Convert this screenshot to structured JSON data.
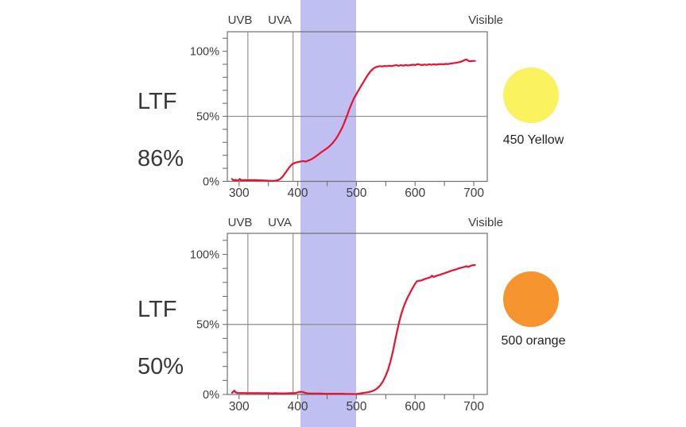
{
  "palette": {
    "background": "#ffffff",
    "curve_red": "#e8112f",
    "grid_gray": "#8b8b8b",
    "border_gray": "#707070",
    "tick_gray": "#707070",
    "text_dark": "#3c3c3c",
    "band_color": "rgba(102,102,224,0.42)"
  },
  "band": {
    "from_nm": 405,
    "to_nm": 500
  },
  "chart_data": [
    {
      "type": "line",
      "side_label": {
        "line1": "LTF",
        "line2": "86%"
      },
      "swatch": {
        "label": "450 Yellow",
        "color": "#FAF25E"
      },
      "xlim": [
        280,
        723
      ],
      "ylim": [
        0,
        115
      ],
      "x_ticks": [
        300,
        400,
        500,
        600,
        700
      ],
      "x_minor_ticks": [
        350,
        450,
        550,
        650
      ],
      "y_ticks": [
        {
          "value": 0,
          "label": "0%"
        },
        {
          "value": 50,
          "label": "50%"
        },
        {
          "value": 100,
          "label": "100%"
        }
      ],
      "y_minor": {
        "step": 10,
        "max": 110
      },
      "h_gridlines": [
        50
      ],
      "uv_lines_nm": [
        315,
        392
      ],
      "region_labels": [
        "UVB",
        "UVA",
        "Visible"
      ],
      "series": [
        {
          "name": "spectral-transmission-450-yellow",
          "points": [
            [
              288,
              1.8
            ],
            [
              290,
              1.0
            ],
            [
              292,
              0.7
            ],
            [
              294,
              1.2
            ],
            [
              296,
              0.7
            ],
            [
              299,
              0.8
            ],
            [
              301,
              1.9
            ],
            [
              303,
              0.8
            ],
            [
              306,
              0.9
            ],
            [
              310,
              1.0
            ],
            [
              314,
              0.9
            ],
            [
              318,
              1.0
            ],
            [
              322,
              0.9
            ],
            [
              326,
              1.0
            ],
            [
              330,
              0.9
            ],
            [
              334,
              0.8
            ],
            [
              338,
              0.8
            ],
            [
              342,
              0.7
            ],
            [
              346,
              0.6
            ],
            [
              350,
              0.5
            ],
            [
              354,
              0.4
            ],
            [
              358,
              0.4
            ],
            [
              362,
              0.5
            ],
            [
              366,
              0.9
            ],
            [
              370,
              1.8
            ],
            [
              374,
              3.5
            ],
            [
              378,
              6.0
            ],
            [
              382,
              8.5
            ],
            [
              386,
              11.0
            ],
            [
              390,
              13.0
            ],
            [
              394,
              14.0
            ],
            [
              398,
              14.6
            ],
            [
              402,
              15.0
            ],
            [
              406,
              15.4
            ],
            [
              410,
              15.6
            ],
            [
              413,
              15.1
            ],
            [
              416,
              15.6
            ],
            [
              420,
              16.3
            ],
            [
              424,
              17.2
            ],
            [
              428,
              18.3
            ],
            [
              432,
              19.6
            ],
            [
              436,
              21.0
            ],
            [
              440,
              22.4
            ],
            [
              444,
              23.6
            ],
            [
              448,
              24.8
            ],
            [
              452,
              26.2
            ],
            [
              456,
              27.8
            ],
            [
              460,
              29.8
            ],
            [
              464,
              32.0
            ],
            [
              468,
              34.8
            ],
            [
              472,
              38.0
            ],
            [
              476,
              41.5
            ],
            [
              480,
              45.8
            ],
            [
              484,
              50.5
            ],
            [
              488,
              55.5
            ],
            [
              492,
              60.0
            ],
            [
              496,
              64.0
            ],
            [
              500,
              67.2
            ],
            [
              504,
              70.3
            ],
            [
              508,
              73.4
            ],
            [
              512,
              76.4
            ],
            [
              516,
              79.4
            ],
            [
              520,
              82.2
            ],
            [
              524,
              84.6
            ],
            [
              528,
              86.4
            ],
            [
              532,
              87.6
            ],
            [
              536,
              88.2
            ],
            [
              540,
              88.6
            ],
            [
              544,
              88.3
            ],
            [
              548,
              88.7
            ],
            [
              552,
              88.5
            ],
            [
              556,
              88.9
            ],
            [
              560,
              88.6
            ],
            [
              564,
              89.0
            ],
            [
              568,
              89.3
            ],
            [
              572,
              88.8
            ],
            [
              576,
              89.4
            ],
            [
              580,
              88.9
            ],
            [
              584,
              89.5
            ],
            [
              588,
              89.0
            ],
            [
              592,
              89.4
            ],
            [
              596,
              89.7
            ],
            [
              600,
              89.3
            ],
            [
              604,
              90.2
            ],
            [
              608,
              89.7
            ],
            [
              612,
              89.4
            ],
            [
              616,
              89.8
            ],
            [
              620,
              89.5
            ],
            [
              624,
              89.9
            ],
            [
              628,
              89.6
            ],
            [
              632,
              90.0
            ],
            [
              636,
              89.7
            ],
            [
              640,
              90.0
            ],
            [
              644,
              90.2
            ],
            [
              648,
              90.0
            ],
            [
              652,
              90.3
            ],
            [
              656,
              90.2
            ],
            [
              660,
              90.5
            ],
            [
              664,
              90.8
            ],
            [
              668,
              91.0
            ],
            [
              672,
              91.3
            ],
            [
              676,
              91.7
            ],
            [
              680,
              92.3
            ],
            [
              684,
              93.1
            ],
            [
              687,
              93.7
            ],
            [
              690,
              93.0
            ],
            [
              693,
              92.3
            ],
            [
              696,
              92.4
            ],
            [
              699,
              92.6
            ],
            [
              702,
              92.6
            ]
          ]
        }
      ]
    },
    {
      "type": "line",
      "side_label": {
        "line1": "LTF",
        "line2": "50%"
      },
      "swatch": {
        "label": "500 orange",
        "color": "#F6942D"
      },
      "xlim": [
        280,
        723
      ],
      "ylim": [
        0,
        115
      ],
      "x_ticks": [
        300,
        400,
        500,
        600,
        700
      ],
      "x_minor_ticks": [
        350,
        450,
        550,
        650
      ],
      "y_ticks": [
        {
          "value": 0,
          "label": "0%"
        },
        {
          "value": 50,
          "label": "50%"
        },
        {
          "value": 100,
          "label": "100%"
        }
      ],
      "y_minor": {
        "step": 10,
        "max": 110
      },
      "h_gridlines": [
        50
      ],
      "uv_lines_nm": [
        315,
        392
      ],
      "region_labels": [
        "UVB",
        "UVA",
        "Visible"
      ],
      "series": [
        {
          "name": "spectral-transmission-500-orange",
          "points": [
            [
              288,
              1.2
            ],
            [
              290,
              2.0
            ],
            [
              292,
              2.7
            ],
            [
              294,
              1.6
            ],
            [
              297,
              1.1
            ],
            [
              300,
              1.0
            ],
            [
              305,
              1.0
            ],
            [
              310,
              1.0
            ],
            [
              315,
              0.9
            ],
            [
              320,
              1.0
            ],
            [
              326,
              0.9
            ],
            [
              332,
              1.0
            ],
            [
              338,
              0.9
            ],
            [
              344,
              0.9
            ],
            [
              350,
              0.9
            ],
            [
              356,
              0.8
            ],
            [
              362,
              0.9
            ],
            [
              368,
              0.8
            ],
            [
              374,
              0.8
            ],
            [
              380,
              0.8
            ],
            [
              386,
              0.9
            ],
            [
              392,
              0.9
            ],
            [
              397,
              1.1
            ],
            [
              401,
              1.6
            ],
            [
              405,
              1.9
            ],
            [
              409,
              1.7
            ],
            [
              413,
              1.1
            ],
            [
              417,
              0.8
            ],
            [
              422,
              0.7
            ],
            [
              428,
              0.6
            ],
            [
              434,
              0.6
            ],
            [
              440,
              0.6
            ],
            [
              446,
              0.5
            ],
            [
              452,
              0.5
            ],
            [
              458,
              0.5
            ],
            [
              464,
              0.5
            ],
            [
              470,
              0.5
            ],
            [
              476,
              0.5
            ],
            [
              482,
              0.4
            ],
            [
              488,
              0.4
            ],
            [
              494,
              0.3
            ],
            [
              500,
              0.4
            ],
            [
              505,
              0.6
            ],
            [
              510,
              1.0
            ],
            [
              515,
              1.3
            ],
            [
              520,
              1.6
            ],
            [
              525,
              2.1
            ],
            [
              530,
              2.9
            ],
            [
              535,
              4.2
            ],
            [
              540,
              6.2
            ],
            [
              545,
              9.2
            ],
            [
              550,
              13.5
            ],
            [
              554,
              17.8
            ],
            [
              558,
              23.5
            ],
            [
              562,
              30.5
            ],
            [
              566,
              38.5
            ],
            [
              570,
              46.5
            ],
            [
              573,
              52.0
            ],
            [
              576,
              56.8
            ],
            [
              580,
              62.0
            ],
            [
              584,
              66.2
            ],
            [
              588,
              69.8
            ],
            [
              592,
              73.0
            ],
            [
              596,
              76.2
            ],
            [
              600,
              79.0
            ],
            [
              603,
              80.7
            ],
            [
              606,
              81.1
            ],
            [
              610,
              81.3
            ],
            [
              614,
              82.0
            ],
            [
              618,
              82.6
            ],
            [
              622,
              83.1
            ],
            [
              626,
              83.6
            ],
            [
              629,
              84.8
            ],
            [
              631,
              83.9
            ],
            [
              634,
              84.3
            ],
            [
              638,
              84.9
            ],
            [
              642,
              85.4
            ],
            [
              646,
              86.0
            ],
            [
              650,
              86.5
            ],
            [
              654,
              87.1
            ],
            [
              658,
              87.7
            ],
            [
              662,
              88.3
            ],
            [
              666,
              88.8
            ],
            [
              670,
              89.3
            ],
            [
              674,
              89.9
            ],
            [
              678,
              90.4
            ],
            [
              682,
              90.8
            ],
            [
              685,
              91.2
            ],
            [
              688,
              91.5
            ],
            [
              691,
              90.9
            ],
            [
              694,
              91.7
            ],
            [
              697,
              92.1
            ],
            [
              700,
              92.3
            ],
            [
              702,
              92.4
            ]
          ]
        }
      ]
    }
  ]
}
